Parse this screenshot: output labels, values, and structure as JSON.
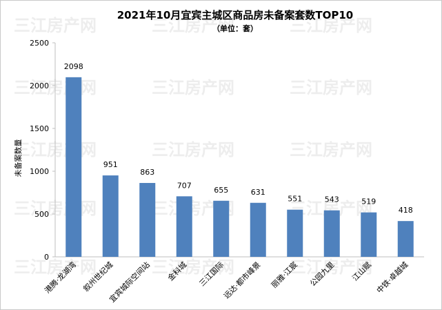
{
  "watermark": "三江房产网",
  "chart_data": {
    "type": "bar",
    "title": "2021年10月宜宾主城区商品房未备案套数TOP10",
    "subtitle": "（单位：套）",
    "ylabel": "未备案数量",
    "xlabel": "",
    "ylim": [
      0,
      2500
    ],
    "yticks": [
      0,
      500,
      1000,
      1500,
      2000,
      2500
    ],
    "grid": false,
    "bar_color": "#4f81bd",
    "categories": [
      "港腾·龙湖湾",
      "叙州世纪城",
      "宜宾城际空间站",
      "金科城",
      "三江国际",
      "远达·都市峰景",
      "丽雅·江宸",
      "公园九里",
      "江山赋",
      "中铁·卓越城"
    ],
    "values": [
      2098,
      951,
      863,
      707,
      655,
      631,
      551,
      543,
      519,
      418
    ]
  }
}
